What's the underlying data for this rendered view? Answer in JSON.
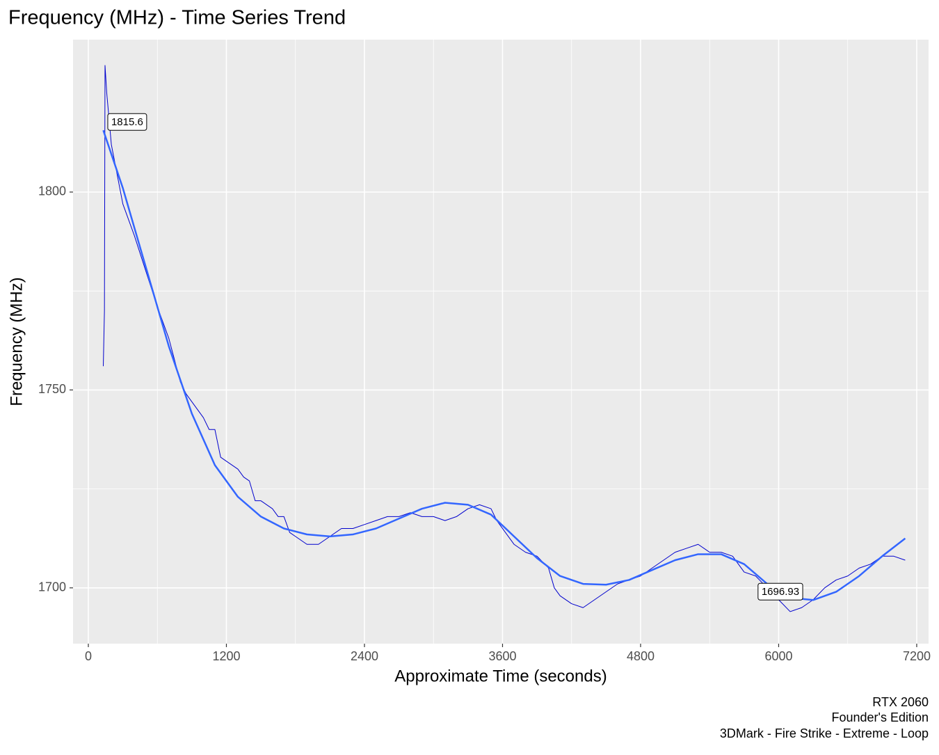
{
  "chart_data": {
    "type": "line",
    "title": "Frequency (MHz) - Time Series Trend",
    "x_label": "Approximate Time (seconds)",
    "y_label": "Frequency (MHz)",
    "caption": [
      "RTX 2060",
      "Founder's Edition",
      "3DMark - Fire Strike - Extreme - Loop"
    ],
    "xlim": [
      -133,
      7303
    ],
    "ylim": [
      1685.9,
      1838.5
    ],
    "xticks": [
      0,
      1200,
      2400,
      3600,
      4800,
      6000,
      7200
    ],
    "yticks": [
      1700,
      1750,
      1800
    ],
    "grid": true,
    "series": [
      {
        "color": "#0000CD",
        "width": 1,
        "x": [
          130,
          140,
          145,
          160,
          200,
          300,
          400,
          500,
          600,
          700,
          800,
          850,
          900,
          1000,
          1050,
          1100,
          1150,
          1200,
          1300,
          1350,
          1400,
          1450,
          1500,
          1600,
          1650,
          1700,
          1750,
          1800,
          1900,
          2000,
          2100,
          2200,
          2300,
          2400,
          2500,
          2600,
          2700,
          2800,
          2900,
          3000,
          3100,
          3200,
          3300,
          3400,
          3500,
          3550,
          3600,
          3700,
          3800,
          3900,
          4000,
          4050,
          4100,
          4200,
          4300,
          4400,
          4500,
          4600,
          4700,
          4800,
          4900,
          5000,
          5100,
          5200,
          5300,
          5400,
          5500,
          5600,
          5700,
          5800,
          5900,
          6000,
          6100,
          6200,
          6300,
          6400,
          6500,
          6600,
          6700,
          6800,
          6900,
          7000,
          7100
        ],
        "values": [
          1756,
          1770,
          1832,
          1825,
          1812,
          1797,
          1789,
          1780,
          1771,
          1763,
          1752,
          1749,
          1747,
          1743,
          1740,
          1740,
          1733,
          1732,
          1730,
          1728,
          1727,
          1722,
          1722,
          1720,
          1718,
          1718,
          1714,
          1713,
          1711,
          1711,
          1713,
          1715,
          1715,
          1716,
          1717,
          1718,
          1718,
          1719,
          1718,
          1718,
          1717,
          1718,
          1720,
          1721,
          1720,
          1717,
          1715,
          1711,
          1709,
          1708,
          1705,
          1700,
          1698,
          1696,
          1695,
          1697,
          1699,
          1701,
          1702,
          1703,
          1705,
          1707,
          1709,
          1710,
          1711,
          1709,
          1709,
          1708,
          1704,
          1703,
          1700,
          1697,
          1694,
          1695,
          1697,
          1700,
          1702,
          1703,
          1705,
          1706,
          1708,
          1708,
          1707
        ]
      },
      {
        "color": "#3366FF",
        "width": 2.5,
        "x": [
          130,
          300,
          500,
          700,
          900,
          1100,
          1300,
          1500,
          1700,
          1900,
          2100,
          2300,
          2500,
          2700,
          2900,
          3100,
          3300,
          3500,
          3700,
          3900,
          4100,
          4300,
          4500,
          4700,
          4900,
          5100,
          5300,
          5500,
          5700,
          5900,
          6100,
          6300,
          6500,
          6700,
          6900,
          7100
        ],
        "values": [
          1815.6,
          1801,
          1781,
          1761,
          1744,
          1731,
          1723,
          1718,
          1715,
          1713.5,
          1713,
          1713.5,
          1715,
          1717.5,
          1720,
          1721.5,
          1721,
          1718.5,
          1713,
          1707.5,
          1703,
          1701,
          1700.8,
          1702,
          1704.5,
          1707,
          1708.5,
          1708.5,
          1706,
          1701,
          1697.5,
          1696.93,
          1699,
          1703,
          1708,
          1712.5
        ]
      }
    ],
    "annotations": [
      {
        "x": 338,
        "y": 1815.6,
        "label": "1815.6"
      },
      {
        "x": 6015,
        "y": 1696.93,
        "label": "1696.93"
      }
    ]
  }
}
